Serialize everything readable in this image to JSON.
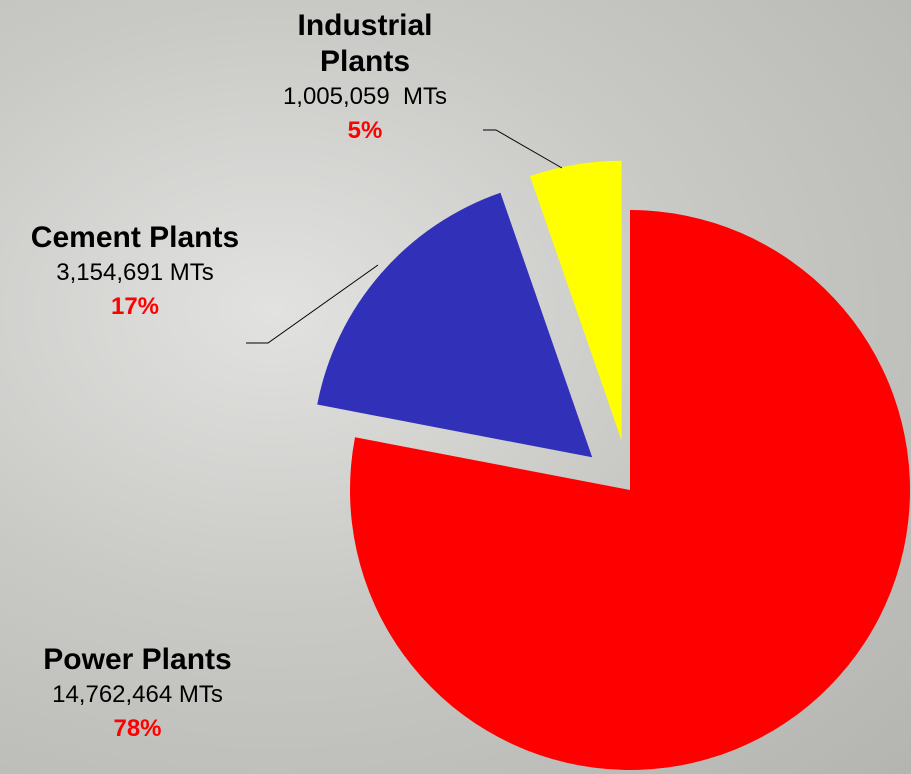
{
  "chart_data": {
    "type": "pie",
    "categories": [
      "Power Plants",
      "Cement Plants",
      "Industrial Plants"
    ],
    "values": [
      14762464,
      3154691,
      1005059
    ],
    "value_labels": [
      "14,762,464 MTs",
      "3,154,691 MTs",
      "1,005,059  MTs"
    ],
    "percentages": [
      78,
      17,
      5
    ],
    "percentage_labels": [
      "78%",
      "17%",
      "5%"
    ],
    "colors": [
      "#ff0000",
      "#3030b8",
      "#ffff00"
    ],
    "exploded": [
      false,
      true,
      true
    ]
  }
}
